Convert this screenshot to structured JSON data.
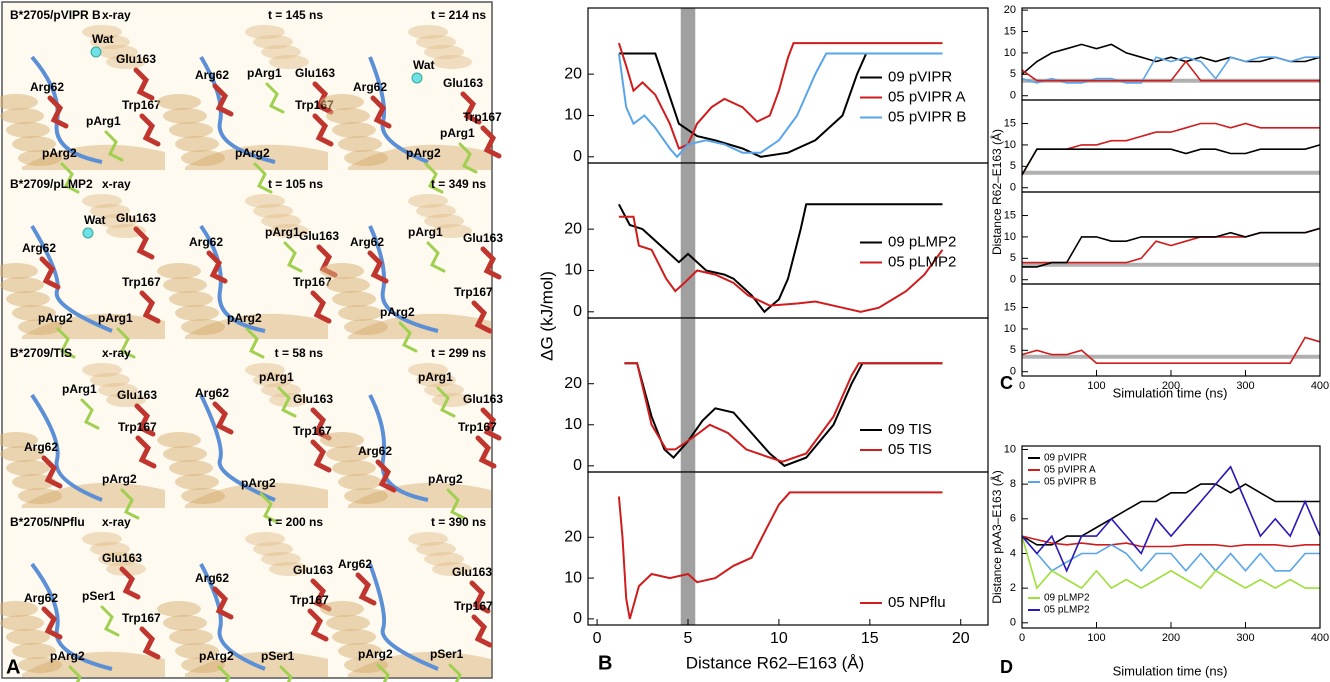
{
  "panel_a": {
    "letter": "A",
    "rows": [
      {
        "title": "B*2705/pVIPR B",
        "cells": [
          {
            "time": "x-ray",
            "labels": [
              "Wat",
              "Glu163",
              "Arg62",
              "Trp167",
              "pArg1",
              "pArg2"
            ]
          },
          {
            "time": "t = 145 ns",
            "labels": [
              "Arg62",
              "pArg1",
              "Glu163",
              "Trp167",
              "pArg2"
            ]
          },
          {
            "time": "t = 214 ns",
            "labels": [
              "Wat",
              "Glu163",
              "Arg62",
              "Trp167",
              "pArg1",
              "pArg2"
            ]
          }
        ]
      },
      {
        "title": "B*2709/pLMP2",
        "cells": [
          {
            "time": "x-ray",
            "labels": [
              "Wat",
              "Glu163",
              "Arg62",
              "Trp167",
              "pArg2",
              "pArg1"
            ]
          },
          {
            "time": "t = 105 ns",
            "labels": [
              "Arg62",
              "pArg1",
              "Glu163",
              "Trp167",
              "pArg2"
            ]
          },
          {
            "time": "t = 349 ns",
            "labels": [
              "Arg62",
              "pArg1",
              "Glu163",
              "Trp167",
              "pArg2"
            ]
          }
        ]
      },
      {
        "title": "B*2709/TIS",
        "cells": [
          {
            "time": "x-ray",
            "labels": [
              "pArg1",
              "Glu163",
              "Trp167",
              "Arg62",
              "pArg2"
            ]
          },
          {
            "time": "t = 58 ns",
            "labels": [
              "Arg62",
              "pArg1",
              "Glu163",
              "Trp167",
              "pArg2"
            ]
          },
          {
            "time": "t = 299 ns",
            "labels": [
              "pArg1",
              "Glu163",
              "Trp167",
              "Arg62",
              "pArg2"
            ]
          }
        ]
      },
      {
        "title": "B*2705/NPflu",
        "cells": [
          {
            "time": "x-ray",
            "labels": [
              "Glu163",
              "Arg62",
              "pSer1",
              "Trp167",
              "pArg2"
            ]
          },
          {
            "time": "t = 200 ns",
            "labels": [
              "Arg62",
              "Glu163",
              "Trp167",
              "pArg2",
              "pSer1"
            ]
          },
          {
            "time": "t = 390 ns",
            "labels": [
              "Arg62",
              "Glu163",
              "Trp167",
              "pArg2",
              "pSer1"
            ]
          }
        ]
      }
    ]
  },
  "panel_b": {
    "letter": "B",
    "xlabel": "Distance R62–E163 (Å)",
    "ylabel": "ΔG (kJ/mol)"
  },
  "panel_c": {
    "letter": "C",
    "xlabel": "Simulation time (ns)",
    "ylabel": "Distance R62–E163 (Å)"
  },
  "panel_d": {
    "letter": "D",
    "xlabel": "Simulation time (ns)",
    "ylabel": "Distance pAA3–E163 (Å)"
  },
  "chart_data": [
    {
      "type": "line",
      "xlim": [
        -0.5,
        21.5
      ],
      "ylim": [
        -1.5,
        36
      ],
      "yticks": [
        0,
        10,
        20
      ],
      "highlight_band": [
        4.6,
        5.4
      ],
      "legend": "center right",
      "series": [
        {
          "name": "09 pVIPR",
          "color": "#000000",
          "x": [
            1.2,
            3.2,
            4.5,
            5.5,
            6.5,
            8,
            9,
            10.5,
            12,
            13.5,
            14.3,
            14.8,
            19
          ],
          "values": [
            25,
            25,
            8,
            5,
            4,
            2,
            0,
            1,
            4,
            10,
            20,
            25,
            25
          ]
        },
        {
          "name": "05 pVIPR A",
          "color": "#d01c1c",
          "x": [
            1.2,
            1.6,
            2,
            2.5,
            3.2,
            4,
            4.5,
            5,
            5.5,
            6.3,
            7,
            8,
            8.8,
            9.5,
            10,
            10.5,
            10.8,
            19
          ],
          "values": [
            27.5,
            22,
            16,
            18,
            15,
            8,
            2,
            3,
            8,
            12,
            14,
            12,
            8.5,
            10,
            16,
            24,
            27.5,
            27.5
          ]
        },
        {
          "name": "05 pVIPR B",
          "color": "#5aa5ea",
          "x": [
            1.2,
            1.6,
            2,
            2.6,
            3.2,
            4,
            4.4,
            5,
            6,
            7,
            8,
            9,
            10,
            11,
            12,
            12.6,
            19
          ],
          "values": [
            25,
            12,
            8,
            10,
            7,
            2,
            0,
            3,
            4,
            3,
            1,
            1,
            4,
            10,
            20,
            25,
            25
          ]
        }
      ]
    },
    {
      "type": "line",
      "xlim": [
        -0.5,
        21.5
      ],
      "ylim": [
        -1.5,
        36
      ],
      "yticks": [
        0,
        10,
        20
      ],
      "highlight_band": [
        4.6,
        5.4
      ],
      "legend": "center right",
      "series": [
        {
          "name": "09 pLMP2",
          "color": "#000000",
          "x": [
            1.2,
            1.8,
            2.5,
            3,
            4,
            4.5,
            5,
            6,
            7,
            7.5,
            8.5,
            9.2,
            10,
            10.5,
            11.2,
            11.5,
            19
          ],
          "values": [
            26,
            21,
            20,
            18,
            14,
            12,
            14,
            10,
            9,
            8,
            4,
            0,
            3,
            8,
            20,
            26,
            26
          ]
        },
        {
          "name": "05 pLMP2",
          "color": "#d01c1c",
          "x": [
            1.2,
            2,
            2.3,
            3,
            3.8,
            4.3,
            4.8,
            5.5,
            6.5,
            7.5,
            8.3,
            9.5,
            11,
            12,
            13.5,
            14.5,
            15.5,
            17,
            18,
            19
          ],
          "values": [
            23,
            23,
            16,
            15,
            8,
            5,
            7,
            10,
            9,
            7,
            4,
            1.5,
            2,
            2.5,
            1,
            0,
            1,
            5,
            9,
            15
          ]
        }
      ]
    },
    {
      "type": "line",
      "xlim": [
        -0.5,
        21.5
      ],
      "ylim": [
        -1.5,
        36
      ],
      "yticks": [
        0,
        10,
        20
      ],
      "highlight_band": [
        4.6,
        5.4
      ],
      "legend": "lower right",
      "series": [
        {
          "name": "09 TIS",
          "color": "#000000",
          "x": [
            1.5,
            2.2,
            3,
            3.7,
            4.2,
            5,
            5.8,
            6.5,
            7.5,
            8.5,
            9.5,
            10.3,
            11.5,
            13,
            14,
            14.6,
            19
          ],
          "values": [
            25,
            25,
            12,
            4,
            2,
            6,
            11,
            14,
            13,
            8,
            3,
            0,
            2,
            10,
            20,
            25,
            25
          ]
        },
        {
          "name": "05 TIS",
          "color": "#d01c1c",
          "x": [
            1.5,
            2.2,
            3,
            3.8,
            4.3,
            5.3,
            6.2,
            7.2,
            8.2,
            9.5,
            10.2,
            11.5,
            13,
            14,
            14.4,
            19
          ],
          "values": [
            25,
            25,
            10,
            4,
            4,
            7,
            10,
            8,
            4,
            2,
            1,
            3,
            12,
            22,
            25,
            25
          ]
        }
      ]
    },
    {
      "type": "line",
      "xlim": [
        -0.5,
        21.5
      ],
      "ylim": [
        -1.5,
        36
      ],
      "yticks": [
        0,
        10,
        20
      ],
      "xticks": [
        0,
        5,
        10,
        15,
        20
      ],
      "highlight_band": [
        4.6,
        5.4
      ],
      "legend": "lower right",
      "series": [
        {
          "name": "05 NPflu",
          "color": "#d01c1c",
          "x": [
            1.2,
            1.4,
            1.6,
            1.8,
            2.3,
            3,
            4,
            5,
            5.5,
            6.5,
            7.5,
            8.5,
            9.3,
            10,
            10.6,
            19
          ],
          "values": [
            30,
            20,
            5,
            0,
            8,
            11,
            10,
            11,
            9,
            10,
            13,
            15,
            22,
            28,
            31,
            31
          ]
        }
      ]
    },
    {
      "type": "line",
      "xlim": [
        0,
        400
      ],
      "ylim": [
        -1,
        20.5
      ],
      "yticks": [
        0,
        5,
        10,
        15,
        20
      ],
      "reference_line": 3.5,
      "x": [
        0,
        20,
        40,
        60,
        80,
        100,
        120,
        140,
        160,
        180,
        200,
        220,
        240,
        260,
        280,
        300,
        320,
        340,
        360,
        380,
        400
      ],
      "series": [
        {
          "color": "#000000",
          "values": [
            5,
            8,
            10,
            11,
            12,
            11,
            12,
            10,
            9,
            8,
            9,
            8,
            9,
            8,
            9,
            8,
            8,
            9,
            8,
            8,
            9
          ]
        },
        {
          "color": "#5aa5ea",
          "values": [
            4,
            3,
            4,
            3,
            3,
            4,
            4,
            3,
            3,
            9,
            8,
            9,
            8,
            4,
            9,
            8,
            9,
            9,
            8,
            9,
            9
          ]
        },
        {
          "color": "#d01c1c",
          "values": [
            6,
            3.5,
            3.5,
            3.5,
            3.5,
            3.5,
            3.5,
            3.5,
            3.5,
            3.5,
            3.5,
            8,
            3.5,
            3.5,
            3.5,
            3.5,
            3.5,
            3.5,
            3.5,
            3.5,
            3.5
          ]
        }
      ]
    },
    {
      "type": "line",
      "xlim": [
        0,
        400
      ],
      "ylim": [
        -1,
        20.5
      ],
      "yticks": [
        0,
        5,
        10,
        15
      ],
      "reference_line": 3.5,
      "x": [
        0,
        20,
        40,
        60,
        80,
        100,
        120,
        140,
        160,
        180,
        200,
        220,
        240,
        260,
        280,
        300,
        320,
        340,
        360,
        380,
        400
      ],
      "series": [
        {
          "color": "#d01c1c",
          "values": [
            3,
            9,
            9,
            9,
            10,
            10,
            11,
            11,
            12,
            13,
            13,
            14,
            15,
            15,
            14,
            15,
            14,
            14,
            14,
            14,
            14
          ]
        },
        {
          "color": "#000000",
          "values": [
            3,
            9,
            9,
            9,
            9,
            9,
            9,
            9,
            9,
            9,
            9,
            8,
            9,
            9,
            8,
            8,
            9,
            9,
            9,
            9,
            10
          ]
        }
      ]
    },
    {
      "type": "line",
      "xlim": [
        0,
        400
      ],
      "ylim": [
        -1,
        20.5
      ],
      "yticks": [
        0,
        5,
        10,
        15
      ],
      "reference_line": 3.5,
      "x": [
        0,
        20,
        40,
        60,
        80,
        100,
        120,
        140,
        160,
        180,
        200,
        220,
        240,
        260,
        280,
        300,
        320,
        340,
        360,
        380,
        400
      ],
      "series": [
        {
          "color": "#d01c1c",
          "values": [
            4,
            4,
            4,
            4,
            4,
            4,
            4,
            4,
            5,
            9,
            8,
            9,
            10,
            10,
            10,
            10,
            11,
            11,
            11,
            11,
            12
          ]
        },
        {
          "color": "#000000",
          "values": [
            3,
            3,
            4,
            4,
            10,
            10,
            9,
            9,
            10,
            10,
            10,
            10,
            10,
            10,
            11,
            10,
            11,
            11,
            11,
            11,
            12
          ]
        }
      ]
    },
    {
      "type": "line",
      "xlim": [
        0,
        400
      ],
      "ylim": [
        -1,
        20.5
      ],
      "yticks": [
        0,
        5,
        10,
        15
      ],
      "xticks": [
        0,
        100,
        200,
        300,
        400
      ],
      "reference_line": 3.5,
      "x": [
        0,
        20,
        40,
        60,
        80,
        100,
        120,
        140,
        160,
        180,
        200,
        220,
        240,
        260,
        280,
        300,
        320,
        340,
        360,
        380,
        400
      ],
      "series": [
        {
          "color": "#d01c1c",
          "values": [
            4,
            5,
            4,
            4,
            5,
            2,
            2,
            2,
            2,
            2,
            2,
            2,
            2,
            2,
            2,
            2,
            2,
            2,
            2,
            8,
            7
          ]
        }
      ]
    },
    {
      "type": "line",
      "xlim": [
        0,
        400
      ],
      "ylim": [
        -0.3,
        10.2
      ],
      "yticks": [
        0,
        2,
        4,
        6,
        8,
        10
      ],
      "xticks": [
        0,
        100,
        200,
        300,
        400
      ],
      "x": [
        0,
        20,
        40,
        60,
        80,
        100,
        120,
        140,
        160,
        180,
        200,
        220,
        240,
        260,
        280,
        300,
        320,
        340,
        360,
        380,
        400
      ],
      "series": [
        {
          "name": "09 pVIPR",
          "color": "#000000",
          "values": [
            5,
            4.5,
            4.5,
            5,
            5,
            5.5,
            6,
            6.5,
            7,
            7,
            7.5,
            7.5,
            8,
            8,
            7.5,
            8,
            7.5,
            7,
            7,
            7,
            7
          ]
        },
        {
          "name": "05 pVIPR A",
          "color": "#d01c1c",
          "values": [
            5,
            4.8,
            4.6,
            4.5,
            4.6,
            4.5,
            4.5,
            4.6,
            4.4,
            4.4,
            4.4,
            4.5,
            4.5,
            4.5,
            4.4,
            4.5,
            4.5,
            4.5,
            4.4,
            4.5,
            4.5
          ]
        },
        {
          "name": "05 pVIPR B",
          "color": "#5aa5ea",
          "values": [
            5,
            4,
            3,
            3.5,
            4,
            4,
            4.5,
            4,
            3,
            4,
            4,
            3,
            4,
            3,
            4,
            3,
            4,
            3,
            3,
            4,
            4
          ]
        },
        {
          "name": "09 pLMP2",
          "color": "#9ee03a",
          "values": [
            5,
            2,
            3,
            2.5,
            2,
            3,
            2,
            2.5,
            2,
            2.5,
            3,
            2.5,
            2,
            3,
            2.5,
            2,
            2.5,
            2,
            2.5,
            2,
            2
          ]
        },
        {
          "name": "05 pLMP2",
          "color": "#2a18b8",
          "values": [
            5,
            4,
            5,
            3,
            5,
            5,
            6,
            5,
            4,
            6,
            5,
            6,
            7,
            8,
            9,
            7,
            5,
            6,
            5,
            7,
            5
          ]
        }
      ]
    }
  ]
}
